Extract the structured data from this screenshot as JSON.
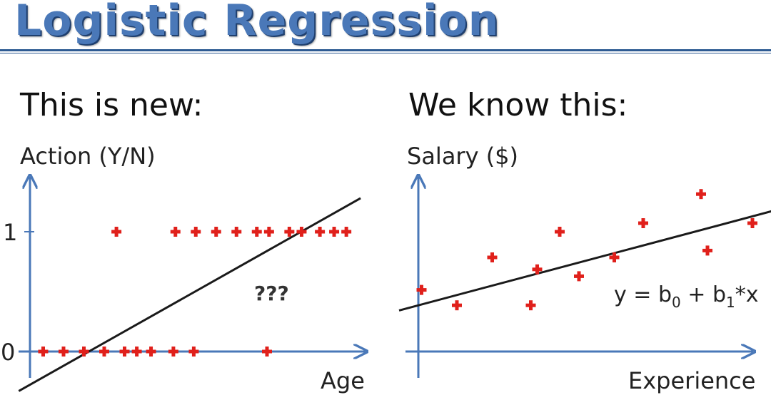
{
  "title": "Logistic Regression",
  "left_heading": "This is new:",
  "right_heading": "We know this:",
  "colors": {
    "title": "#4a78b8",
    "axis": "#4a78b8",
    "marker": "#e0201b",
    "line": "#1a1a1a",
    "text": "#222222"
  },
  "chart_data": [
    {
      "type": "scatter",
      "ylabel": "Action (Y/N)",
      "xlabel": "Age",
      "y_ticks": [
        "0",
        "1"
      ],
      "annotation": "???",
      "grid": false,
      "series": [
        {
          "points": [
            [
              1,
              0
            ],
            [
              2,
              0
            ],
            [
              3,
              0
            ],
            [
              4,
              0
            ],
            [
              5,
              0
            ],
            [
              5.6,
              0
            ],
            [
              6.3,
              0
            ],
            [
              7.4,
              0
            ],
            [
              8.4,
              0
            ],
            [
              12,
              0
            ],
            [
              4.6,
              1
            ],
            [
              7.5,
              1
            ],
            [
              8.5,
              1
            ],
            [
              9.5,
              1
            ],
            [
              10.5,
              1
            ],
            [
              11.5,
              1
            ],
            [
              12.1,
              1
            ],
            [
              13.1,
              1
            ],
            [
              13.7,
              1
            ],
            [
              14.6,
              1
            ],
            [
              15.3,
              1
            ],
            [
              15.9,
              1
            ]
          ]
        }
      ],
      "fit_line": {
        "x": [
          -0.2,
          16.6
        ],
        "y": [
          -0.33,
          1.28
        ]
      }
    },
    {
      "type": "scatter",
      "ylabel": "Salary ($)",
      "xlabel": "Experience",
      "equation": {
        "lhs": "y = b",
        "sub0": "0",
        "mid": " + b",
        "sub1": "1",
        "rhs": "*x"
      },
      "grid": false,
      "series": [
        {
          "points": [
            [
              0.5,
              1.8
            ],
            [
              1.6,
              1.35
            ],
            [
              2.7,
              2.75
            ],
            [
              3.9,
              1.35
            ],
            [
              4.1,
              2.4
            ],
            [
              4.8,
              3.5
            ],
            [
              5.4,
              2.2
            ],
            [
              6.5,
              2.75
            ],
            [
              7.4,
              3.75
            ],
            [
              9.2,
              4.6
            ],
            [
              9.4,
              2.95
            ],
            [
              10.8,
              3.75
            ]
          ]
        }
      ],
      "fit_line": {
        "x": [
          -0.2,
          11.4
        ],
        "y": [
          1.2,
          4.1
        ]
      }
    }
  ]
}
